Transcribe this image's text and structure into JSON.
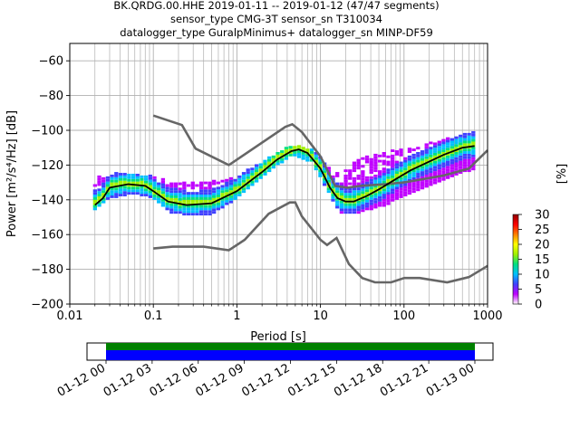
{
  "chart_data": {
    "type": "heatmap",
    "title_lines": [
      "BK.QRDG.00.HHE   2019-01-11 -- 2019-01-12  (47/47 segments)",
      "sensor_type CMG-3T sensor_sn T310034",
      "datalogger_type GuralpMinimus+ datalogger_sn MINP-DF59"
    ],
    "xlabel": "Period [s]",
    "ylabel": "Power [m²/s⁴/Hz] [dB]",
    "xscale": "log",
    "xlim": [
      0.01,
      1000
    ],
    "ylim": [
      -200,
      -50
    ],
    "x_ticks": [
      {
        "value": 0.01,
        "label": "0.01"
      },
      {
        "value": 0.1,
        "label": "0.1"
      },
      {
        "value": 1,
        "label": "1"
      },
      {
        "value": 10,
        "label": "10"
      },
      {
        "value": 100,
        "label": "100"
      },
      {
        "value": 1000,
        "label": "1000"
      }
    ],
    "y_ticks": [
      {
        "value": -60,
        "label": "−60"
      },
      {
        "value": -80,
        "label": "−80"
      },
      {
        "value": -100,
        "label": "−100"
      },
      {
        "value": -120,
        "label": "−120"
      },
      {
        "value": -140,
        "label": "−140"
      },
      {
        "value": -160,
        "label": "−160"
      },
      {
        "value": -180,
        "label": "−180"
      },
      {
        "value": -200,
        "label": "−200"
      }
    ],
    "grid": true,
    "noise_model_high": {
      "x": [
        0.1,
        0.22,
        0.32,
        0.8,
        3.8,
        4.6,
        6.0,
        10,
        15,
        21,
        30,
        60,
        100,
        300,
        600,
        1000
      ],
      "y": [
        -91.5,
        -97,
        -110.5,
        -120,
        -98,
        -96.5,
        -101,
        -115,
        -132,
        -133,
        -132,
        -131,
        -130,
        -126,
        -122,
        -111.5
      ]
    },
    "noise_model_low": {
      "x": [
        0.1,
        0.17,
        0.4,
        0.8,
        1.24,
        2.4,
        4.3,
        5,
        6,
        10,
        12,
        15.6,
        21.9,
        31.6,
        45,
        70,
        101,
        154,
        328,
        600,
        1000
      ],
      "y": [
        -168,
        -167,
        -167,
        -169,
        -163,
        -148,
        -141.5,
        -141.5,
        -149.5,
        -163,
        -166,
        -162,
        -177,
        -185,
        -187.5,
        -187.5,
        -185,
        -185,
        -187.5,
        -184.5,
        -178
      ]
    },
    "mode_curve": {
      "x": [
        0.02,
        0.025,
        0.03,
        0.05,
        0.08,
        0.1,
        0.15,
        0.25,
        0.5,
        1,
        2,
        3,
        4.5,
        5.5,
        7,
        10,
        13,
        16,
        20,
        25,
        35,
        50,
        80,
        120,
        200,
        300,
        500,
        700
      ],
      "y": [
        -143,
        -139,
        -133,
        -131,
        -132,
        -135,
        -141,
        -143,
        -142,
        -135,
        -124,
        -117,
        -112,
        -111,
        -113,
        -122,
        -133,
        -139,
        -141,
        -141,
        -138,
        -134,
        -128,
        -123,
        -118,
        -114,
        -110,
        -109
      ]
    },
    "spread": {
      "x": [
        0.02,
        0.03,
        0.06,
        0.1,
        0.16,
        0.3,
        0.5,
        1,
        2,
        4.5,
        8,
        13,
        18,
        30,
        60,
        120,
        300,
        700
      ],
      "low": [
        -146,
        -139,
        -136,
        -139,
        -147,
        -149,
        -148,
        -139,
        -127,
        -114,
        -118,
        -137,
        -148,
        -147,
        -143,
        -136,
        -128,
        -122
      ],
      "high": [
        -127,
        -125,
        -126,
        -127,
        -130,
        -131,
        -130,
        -127,
        -119,
        -109,
        -111,
        -122,
        -126,
        -116,
        -113,
        -111,
        -106,
        -101
      ]
    },
    "colorbar": {
      "label": "[%]",
      "min": 0,
      "max": 30,
      "ticks": [
        {
          "value": 0,
          "label": "0"
        },
        {
          "value": 5,
          "label": "5"
        },
        {
          "value": 10,
          "label": "10"
        },
        {
          "value": 15,
          "label": "15"
        },
        {
          "value": 20,
          "label": "20"
        },
        {
          "value": 25,
          "label": "25"
        },
        {
          "value": 30,
          "label": "30"
        }
      ],
      "colors": [
        "#ffffff",
        "#c000ff",
        "#4040ff",
        "#00c0ff",
        "#00e080",
        "#a0f000",
        "#ffff00",
        "#ff8000",
        "#ff0000",
        "#900000"
      ]
    },
    "timeline": {
      "ticks": [
        "01-12 00",
        "01-12 03",
        "01-12 06",
        "01-12 09",
        "01-12 12",
        "01-12 15",
        "01-12 18",
        "01-12 21",
        "01-13 00"
      ],
      "data_color": "#0000ff",
      "gap_color": "#008000"
    },
    "colors": {
      "noise_model": "#666666",
      "mode": "#000000"
    }
  }
}
